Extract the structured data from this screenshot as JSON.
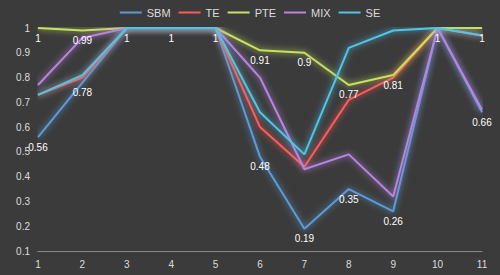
{
  "chart_data": {
    "type": "line",
    "categories": [
      "1",
      "2",
      "3",
      "4",
      "5",
      "6",
      "7",
      "8",
      "9",
      "10",
      "11"
    ],
    "series": [
      {
        "name": "SBM",
        "color": "#5b9bd5",
        "data_labels": true,
        "values": [
          0.56,
          0.78,
          1,
          1,
          1,
          0.48,
          0.19,
          0.35,
          0.26,
          1,
          0.66
        ]
      },
      {
        "name": "TE",
        "color": "#ff5a5a",
        "values": [
          0.73,
          0.8,
          1,
          1,
          1,
          0.6,
          0.44,
          0.71,
          0.8,
          1,
          0.97
        ]
      },
      {
        "name": "PTE",
        "color": "#c8e25e",
        "data_labels": true,
        "values": [
          1,
          0.99,
          1,
          1,
          1,
          0.91,
          0.9,
          0.77,
          0.81,
          1,
          1
        ],
        "value_labels": [
          "1",
          "0.99",
          null,
          null,
          null,
          "0.91",
          "0.9",
          "0.77",
          "0.81",
          null,
          "1"
        ]
      },
      {
        "name": "MIX",
        "color": "#b784e0",
        "values": [
          0.77,
          0.96,
          1,
          1,
          1,
          0.8,
          0.43,
          0.49,
          0.32,
          1,
          0.67
        ]
      },
      {
        "name": "SE",
        "color": "#4fc6e6",
        "values": [
          0.73,
          0.81,
          1,
          1,
          1,
          0.66,
          0.49,
          0.92,
          0.99,
          1,
          0.97
        ]
      }
    ],
    "ylim": [
      0.1,
      1
    ],
    "yticks": [
      0.1,
      0.2,
      0.3,
      0.4,
      0.5,
      0.6,
      0.7,
      0.8,
      0.9,
      1
    ],
    "grid": false,
    "legend": "top"
  }
}
